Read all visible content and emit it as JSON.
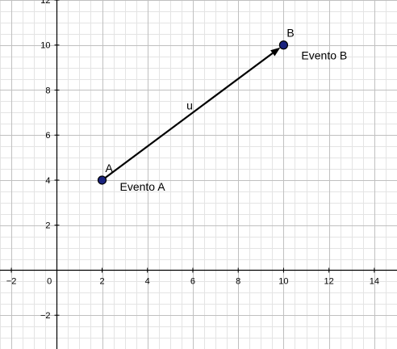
{
  "axes": {
    "x_range": [
      -2.5,
      15
    ],
    "y_range": [
      -3.5,
      12
    ],
    "x_ticks": [
      -2,
      0,
      2,
      4,
      6,
      8,
      10,
      12,
      14
    ],
    "y_ticks": [
      -2,
      2,
      4,
      6,
      8,
      10,
      12
    ],
    "x_tick_labels": [
      "−2",
      "0",
      "2",
      "4",
      "6",
      "8",
      "10",
      "12",
      "14"
    ],
    "y_tick_labels": [
      "−2",
      "2",
      "4",
      "6",
      "8",
      "10",
      "12"
    ],
    "major_step": 2,
    "minor_step": 0.5,
    "grid": true
  },
  "points": [
    {
      "name": "A",
      "x": 2,
      "y": 4,
      "caption": "Evento A"
    },
    {
      "name": "B",
      "x": 10,
      "y": 10,
      "caption": "Evento B"
    }
  ],
  "vector": {
    "name": "u",
    "from": "A",
    "to": "B"
  },
  "colors": {
    "axis": "#000000",
    "major_grid": "#c0c0c0",
    "minor_grid": "#e4e4e4",
    "point_fill": "#1a237e",
    "point_stroke": "#000000",
    "vector": "#000000"
  }
}
